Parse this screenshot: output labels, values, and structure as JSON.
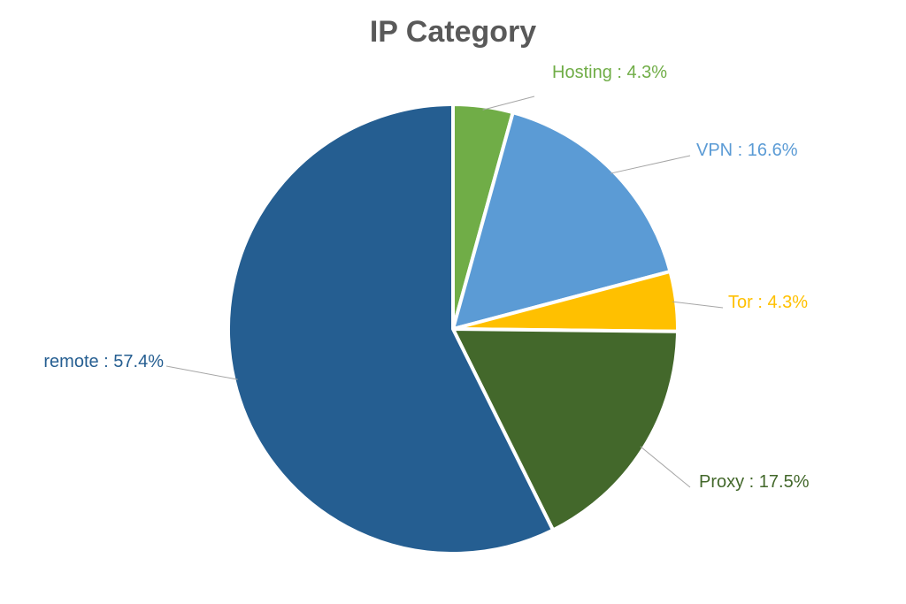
{
  "chart_data": {
    "type": "pie",
    "title": "IP Category",
    "slices": [
      {
        "name": "Hosting",
        "value": 4.3,
        "label": "Hosting : 4.3%",
        "color": "#70ad47"
      },
      {
        "name": "VPN",
        "value": 16.6,
        "label": "VPN : 16.6%",
        "color": "#5b9bd5"
      },
      {
        "name": "Tor",
        "value": 4.3,
        "label": "Tor : 4.3%",
        "color": "#ffc000"
      },
      {
        "name": "Proxy",
        "value": 17.5,
        "label": "Proxy : 17.5%",
        "color": "#43682b"
      },
      {
        "name": "remote",
        "value": 57.4,
        "label": "remote : 57.4%",
        "color": "#255e91"
      }
    ],
    "start_angle": "12 o'clock",
    "direction": "clockwise",
    "legend": "none",
    "label_style": "outside with leader lines"
  }
}
